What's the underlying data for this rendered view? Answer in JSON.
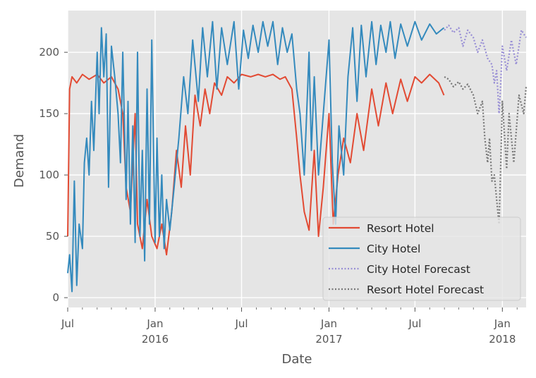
{
  "chart_data": {
    "type": "line",
    "title": "",
    "xlabel": "Date",
    "ylabel": "Demand",
    "ylim": [
      -8,
      234
    ],
    "xlim": [
      "2015-07-01",
      "2018-02-20"
    ],
    "grid": true,
    "legend_position": "lower-right",
    "yticks": [
      0,
      50,
      100,
      150,
      200
    ],
    "xticks": [
      {
        "date": "2015-07-01",
        "label": "Jul",
        "sublabel": ""
      },
      {
        "date": "2016-01-01",
        "label": "Jan",
        "sublabel": "2016"
      },
      {
        "date": "2016-07-01",
        "label": "Jul",
        "sublabel": ""
      },
      {
        "date": "2017-01-01",
        "label": "Jan",
        "sublabel": "2017"
      },
      {
        "date": "2017-07-01",
        "label": "Jul",
        "sublabel": ""
      },
      {
        "date": "2018-01-01",
        "label": "Jan",
        "sublabel": "2018"
      }
    ],
    "series": [
      {
        "name": "Resort Hotel",
        "style": "solid",
        "color": "#E24A33",
        "points": [
          [
            "2015-07-01",
            50
          ],
          [
            "2015-07-05",
            170
          ],
          [
            "2015-07-10",
            180
          ],
          [
            "2015-07-20",
            175
          ],
          [
            "2015-08-01",
            182
          ],
          [
            "2015-08-15",
            178
          ],
          [
            "2015-09-01",
            182
          ],
          [
            "2015-09-15",
            175
          ],
          [
            "2015-10-01",
            180
          ],
          [
            "2015-10-15",
            170
          ],
          [
            "2015-10-25",
            150
          ],
          [
            "2015-11-01",
            90
          ],
          [
            "2015-11-10",
            70
          ],
          [
            "2015-11-20",
            150
          ],
          [
            "2015-11-25",
            60
          ],
          [
            "2015-12-05",
            40
          ],
          [
            "2015-12-15",
            80
          ],
          [
            "2015-12-25",
            50
          ],
          [
            "2016-01-05",
            40
          ],
          [
            "2016-01-15",
            60
          ],
          [
            "2016-01-25",
            35
          ],
          [
            "2016-02-05",
            70
          ],
          [
            "2016-02-15",
            120
          ],
          [
            "2016-02-25",
            90
          ],
          [
            "2016-03-05",
            140
          ],
          [
            "2016-03-15",
            100
          ],
          [
            "2016-03-25",
            165
          ],
          [
            "2016-04-05",
            140
          ],
          [
            "2016-04-15",
            170
          ],
          [
            "2016-04-25",
            150
          ],
          [
            "2016-05-05",
            175
          ],
          [
            "2016-05-20",
            165
          ],
          [
            "2016-06-01",
            180
          ],
          [
            "2016-06-15",
            175
          ],
          [
            "2016-07-01",
            182
          ],
          [
            "2016-07-20",
            180
          ],
          [
            "2016-08-05",
            182
          ],
          [
            "2016-08-20",
            180
          ],
          [
            "2016-09-05",
            182
          ],
          [
            "2016-09-20",
            178
          ],
          [
            "2016-10-01",
            180
          ],
          [
            "2016-10-15",
            170
          ],
          [
            "2016-10-25",
            130
          ],
          [
            "2016-11-01",
            100
          ],
          [
            "2016-11-10",
            70
          ],
          [
            "2016-11-20",
            55
          ],
          [
            "2016-12-01",
            120
          ],
          [
            "2016-12-10",
            50
          ],
          [
            "2016-12-20",
            90
          ],
          [
            "2017-01-01",
            150
          ],
          [
            "2017-01-10",
            60
          ],
          [
            "2017-01-20",
            100
          ],
          [
            "2017-02-01",
            130
          ],
          [
            "2017-02-15",
            110
          ],
          [
            "2017-03-01",
            150
          ],
          [
            "2017-03-15",
            120
          ],
          [
            "2017-04-01",
            170
          ],
          [
            "2017-04-15",
            140
          ],
          [
            "2017-05-01",
            175
          ],
          [
            "2017-05-15",
            150
          ],
          [
            "2017-06-01",
            178
          ],
          [
            "2017-06-15",
            160
          ],
          [
            "2017-07-01",
            180
          ],
          [
            "2017-07-15",
            175
          ],
          [
            "2017-08-01",
            182
          ],
          [
            "2017-08-20",
            175
          ],
          [
            "2017-08-31",
            165
          ]
        ]
      },
      {
        "name": "City Hotel",
        "style": "solid",
        "color": "#348ABD",
        "points": [
          [
            "2015-07-01",
            20
          ],
          [
            "2015-07-05",
            35
          ],
          [
            "2015-07-10",
            5
          ],
          [
            "2015-07-15",
            95
          ],
          [
            "2015-07-20",
            10
          ],
          [
            "2015-07-25",
            60
          ],
          [
            "2015-08-01",
            40
          ],
          [
            "2015-08-05",
            110
          ],
          [
            "2015-08-10",
            130
          ],
          [
            "2015-08-15",
            100
          ],
          [
            "2015-08-20",
            160
          ],
          [
            "2015-08-25",
            120
          ],
          [
            "2015-09-01",
            200
          ],
          [
            "2015-09-05",
            150
          ],
          [
            "2015-09-10",
            220
          ],
          [
            "2015-09-15",
            180
          ],
          [
            "2015-09-20",
            215
          ],
          [
            "2015-09-25",
            90
          ],
          [
            "2015-10-01",
            205
          ],
          [
            "2015-10-08",
            180
          ],
          [
            "2015-10-15",
            150
          ],
          [
            "2015-10-20",
            110
          ],
          [
            "2015-10-25",
            200
          ],
          [
            "2015-11-01",
            80
          ],
          [
            "2015-11-05",
            160
          ],
          [
            "2015-11-10",
            60
          ],
          [
            "2015-11-15",
            140
          ],
          [
            "2015-11-20",
            45
          ],
          [
            "2015-11-25",
            200
          ],
          [
            "2015-11-30",
            50
          ],
          [
            "2015-12-05",
            120
          ],
          [
            "2015-12-10",
            30
          ],
          [
            "2015-12-15",
            170
          ],
          [
            "2015-12-20",
            60
          ],
          [
            "2015-12-25",
            210
          ],
          [
            "2016-01-01",
            45
          ],
          [
            "2016-01-05",
            130
          ],
          [
            "2016-01-10",
            50
          ],
          [
            "2016-01-15",
            100
          ],
          [
            "2016-01-20",
            40
          ],
          [
            "2016-01-25",
            80
          ],
          [
            "2016-02-01",
            55
          ],
          [
            "2016-02-10",
            90
          ],
          [
            "2016-02-20",
            130
          ],
          [
            "2016-03-01",
            180
          ],
          [
            "2016-03-10",
            150
          ],
          [
            "2016-03-20",
            210
          ],
          [
            "2016-04-01",
            160
          ],
          [
            "2016-04-10",
            220
          ],
          [
            "2016-04-20",
            180
          ],
          [
            "2016-05-01",
            225
          ],
          [
            "2016-05-10",
            170
          ],
          [
            "2016-05-20",
            220
          ],
          [
            "2016-06-01",
            190
          ],
          [
            "2016-06-15",
            225
          ],
          [
            "2016-06-25",
            170
          ],
          [
            "2016-07-05",
            218
          ],
          [
            "2016-07-15",
            195
          ],
          [
            "2016-07-25",
            222
          ],
          [
            "2016-08-05",
            200
          ],
          [
            "2016-08-15",
            225
          ],
          [
            "2016-08-25",
            205
          ],
          [
            "2016-09-05",
            225
          ],
          [
            "2016-09-15",
            190
          ],
          [
            "2016-09-25",
            220
          ],
          [
            "2016-10-05",
            200
          ],
          [
            "2016-10-15",
            215
          ],
          [
            "2016-10-25",
            170
          ],
          [
            "2016-11-01",
            150
          ],
          [
            "2016-11-10",
            100
          ],
          [
            "2016-11-20",
            200
          ],
          [
            "2016-11-25",
            120
          ],
          [
            "2016-12-01",
            180
          ],
          [
            "2016-12-10",
            100
          ],
          [
            "2016-12-20",
            150
          ],
          [
            "2017-01-01",
            210
          ],
          [
            "2017-01-08",
            110
          ],
          [
            "2017-01-15",
            60
          ],
          [
            "2017-01-22",
            140
          ],
          [
            "2017-02-01",
            100
          ],
          [
            "2017-02-10",
            180
          ],
          [
            "2017-02-20",
            220
          ],
          [
            "2017-03-01",
            160
          ],
          [
            "2017-03-10",
            222
          ],
          [
            "2017-03-20",
            180
          ],
          [
            "2017-04-01",
            225
          ],
          [
            "2017-04-10",
            190
          ],
          [
            "2017-04-20",
            222
          ],
          [
            "2017-05-01",
            200
          ],
          [
            "2017-05-10",
            225
          ],
          [
            "2017-05-20",
            195
          ],
          [
            "2017-06-01",
            223
          ],
          [
            "2017-06-15",
            205
          ],
          [
            "2017-07-01",
            225
          ],
          [
            "2017-07-15",
            210
          ],
          [
            "2017-08-01",
            223
          ],
          [
            "2017-08-15",
            215
          ],
          [
            "2017-08-31",
            220
          ]
        ]
      },
      {
        "name": "City Hotel Forecast",
        "style": "dotted",
        "color": "#988ED5",
        "points": [
          [
            "2017-09-01",
            218
          ],
          [
            "2017-09-10",
            222
          ],
          [
            "2017-09-20",
            216
          ],
          [
            "2017-10-01",
            220
          ],
          [
            "2017-10-10",
            205
          ],
          [
            "2017-10-20",
            218
          ],
          [
            "2017-11-01",
            212
          ],
          [
            "2017-11-10",
            200
          ],
          [
            "2017-11-20",
            210
          ],
          [
            "2017-12-01",
            195
          ],
          [
            "2017-12-10",
            190
          ],
          [
            "2017-12-15",
            175
          ],
          [
            "2017-12-20",
            185
          ],
          [
            "2017-12-25",
            150
          ],
          [
            "2017-12-28",
            170
          ],
          [
            "2018-01-01",
            205
          ],
          [
            "2018-01-10",
            185
          ],
          [
            "2018-01-20",
            210
          ],
          [
            "2018-01-30",
            190
          ],
          [
            "2018-02-10",
            218
          ],
          [
            "2018-02-20",
            212
          ]
        ]
      },
      {
        "name": "Resort Hotel Forecast",
        "style": "dotted",
        "color": "#777777",
        "points": [
          [
            "2017-09-01",
            180
          ],
          [
            "2017-09-10",
            178
          ],
          [
            "2017-09-20",
            172
          ],
          [
            "2017-10-01",
            176
          ],
          [
            "2017-10-10",
            170
          ],
          [
            "2017-10-20",
            174
          ],
          [
            "2017-11-01",
            165
          ],
          [
            "2017-11-10",
            150
          ],
          [
            "2017-11-20",
            160
          ],
          [
            "2017-11-25",
            130
          ],
          [
            "2017-12-01",
            110
          ],
          [
            "2017-12-05",
            130
          ],
          [
            "2017-12-10",
            95
          ],
          [
            "2017-12-15",
            100
          ],
          [
            "2017-12-20",
            80
          ],
          [
            "2017-12-25",
            60
          ],
          [
            "2017-12-28",
            100
          ],
          [
            "2018-01-01",
            160
          ],
          [
            "2018-01-10",
            105
          ],
          [
            "2018-01-15",
            150
          ],
          [
            "2018-01-25",
            110
          ],
          [
            "2018-02-05",
            165
          ],
          [
            "2018-02-15",
            150
          ],
          [
            "2018-02-20",
            172
          ]
        ]
      }
    ]
  }
}
